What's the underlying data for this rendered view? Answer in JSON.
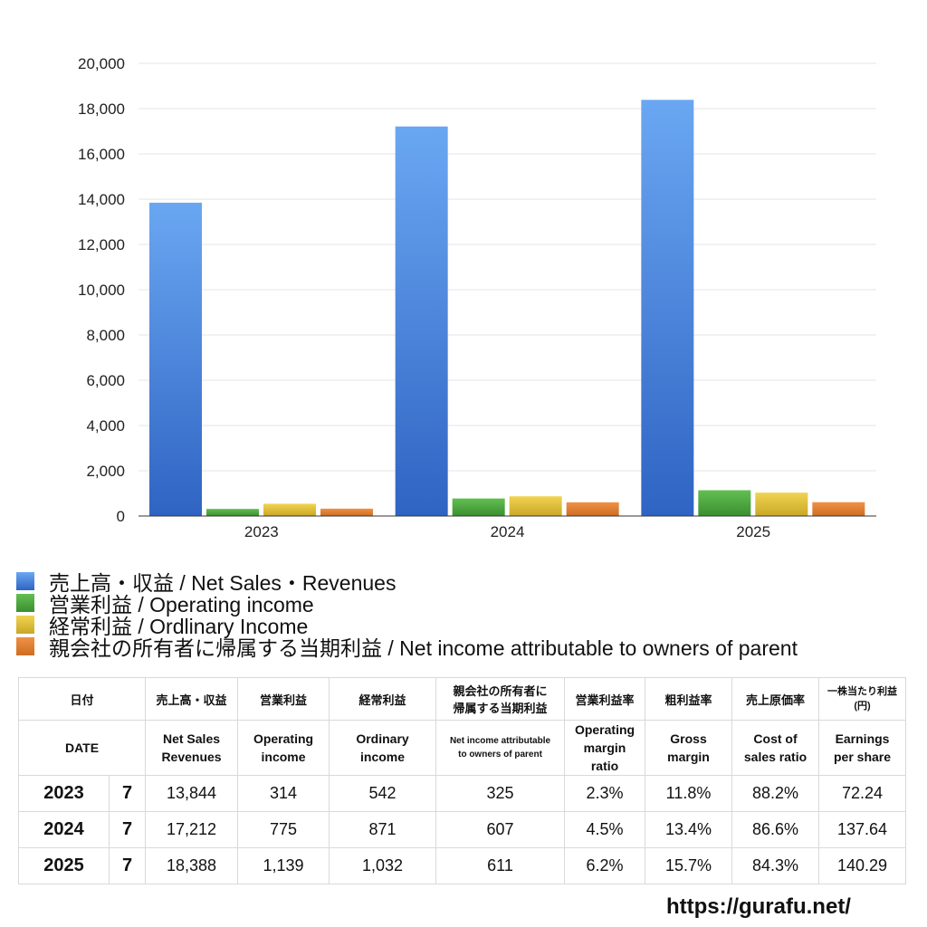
{
  "chart_data": {
    "type": "bar",
    "categories": [
      "2023",
      "2024",
      "2025"
    ],
    "ylim": [
      0,
      20000
    ],
    "yticks": [
      "0",
      "2,000",
      "4,000",
      "6,000",
      "8,000",
      "10,000",
      "12,000",
      "14,000",
      "16,000",
      "18,000",
      "20,000"
    ],
    "grid": true,
    "legend_position": "bottom",
    "series": [
      {
        "name": "売上高・収益 / Net Sales・Revenues",
        "values": [
          13844,
          17212,
          18388
        ],
        "color": "#4a86e0"
      },
      {
        "name": "営業利益 / Operating income",
        "values": [
          314,
          775,
          1139
        ],
        "color": "#4caa3f"
      },
      {
        "name": "経常利益 / Ordlinary Income",
        "values": [
          542,
          871,
          1032
        ],
        "color": "#e3c235"
      },
      {
        "name": "親会社の所有者に帰属する当期利益 / Net income attributable to owners of parent",
        "values": [
          325,
          607,
          611
        ],
        "color": "#e07d2e"
      }
    ]
  },
  "table": {
    "header_jp": {
      "date": "日付",
      "sales": "売上高・収益",
      "op": "営業利益",
      "ord": "経常利益",
      "net_line1": "親会社の所有者に",
      "net_line2": "帰属する当期利益",
      "opm": "営業利益率",
      "gm": "粗利益率",
      "cost": "売上原価率",
      "eps_line1": "一株当たり利益",
      "eps_line2": "(円)"
    },
    "header_en": {
      "date": "DATE",
      "sales_line1": "Net Sales",
      "sales_line2": "Revenues",
      "op_line1": "Operating",
      "op_line2": "income",
      "ord_line1": "Ordinary",
      "ord_line2": "income",
      "net_line1": "Net income attributable",
      "net_line2": "to owners of parent",
      "opm_line1": "Operating",
      "opm_line2": "margin",
      "opm_line3": "ratio",
      "gm_line1": "Gross",
      "gm_line2": "margin",
      "cost_line1": "Cost of",
      "cost_line2": "sales ratio",
      "eps_line1": "Earnings",
      "eps_line2": "per share"
    },
    "rows": [
      {
        "year": "2023",
        "month": "7",
        "sales": "13,844",
        "op": "314",
        "ord": "542",
        "net": "325",
        "opm": "2.3%",
        "gm": "11.8%",
        "cost": "88.2%",
        "eps": "72.24"
      },
      {
        "year": "2024",
        "month": "7",
        "sales": "17,212",
        "op": "775",
        "ord": "871",
        "net": "607",
        "opm": "4.5%",
        "gm": "13.4%",
        "cost": "86.6%",
        "eps": "137.64"
      },
      {
        "year": "2025",
        "month": "7",
        "sales": "18,388",
        "op": "1,139",
        "ord": "1,032",
        "net": "611",
        "opm": "6.2%",
        "gm": "15.7%",
        "cost": "84.3%",
        "eps": "140.29"
      }
    ]
  },
  "source": "https://gurafu.net/"
}
